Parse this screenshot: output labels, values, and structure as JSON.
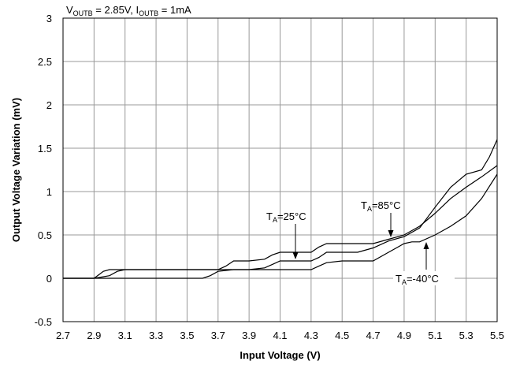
{
  "chart_data": {
    "type": "line",
    "title": "",
    "conditions": {
      "v_base": "V",
      "v_sub": "OUTB",
      "v_value": " = 2.85V, ",
      "i_base": "I",
      "i_sub": "OUTB",
      "i_value": " = 1mA"
    },
    "xlabel": "Input Voltage (V)",
    "ylabel": "Output Voltage Variation (mV)",
    "xlim": [
      2.7,
      5.5
    ],
    "ylim": [
      -0.5,
      3
    ],
    "xticks": [
      "2.7",
      "2.9",
      "3.1",
      "3.3",
      "3.5",
      "3.7",
      "3.9",
      "4.1",
      "4.3",
      "4.5",
      "4.7",
      "4.9",
      "5.1",
      "5.3",
      "5.5"
    ],
    "yticks": [
      "-0.5",
      "0",
      "0.5",
      "1",
      "1.5",
      "2",
      "2.5",
      "3"
    ],
    "grid": true,
    "series": [
      {
        "name": "25°C",
        "x": [
          2.7,
          2.9,
          2.93,
          2.96,
          3.0,
          3.04,
          3.1,
          3.3,
          3.5,
          3.6,
          3.7,
          3.75,
          3.8,
          3.9,
          4.0,
          4.05,
          4.1,
          4.15,
          4.2,
          4.3,
          4.35,
          4.4,
          4.5,
          4.6,
          4.7,
          4.8,
          4.9,
          5.0,
          5.1,
          5.2,
          5.3,
          5.4,
          5.5
        ],
        "y": [
          0,
          0,
          0.04,
          0.08,
          0.1,
          0.1,
          0.1,
          0.1,
          0.1,
          0.1,
          0.1,
          0.14,
          0.2,
          0.2,
          0.22,
          0.27,
          0.3,
          0.3,
          0.3,
          0.3,
          0.36,
          0.4,
          0.4,
          0.4,
          0.4,
          0.45,
          0.5,
          0.6,
          0.75,
          0.92,
          1.05,
          1.17,
          1.3
        ]
      },
      {
        "name": "85°C",
        "x": [
          2.7,
          2.9,
          3.0,
          3.05,
          3.1,
          3.3,
          3.5,
          3.7,
          3.8,
          3.9,
          4.0,
          4.05,
          4.1,
          4.2,
          4.3,
          4.35,
          4.4,
          4.5,
          4.6,
          4.7,
          4.8,
          4.9,
          5.0,
          5.1,
          5.2,
          5.3,
          5.4,
          5.45,
          5.5
        ],
        "y": [
          0,
          0,
          0.03,
          0.08,
          0.1,
          0.1,
          0.1,
          0.1,
          0.1,
          0.1,
          0.12,
          0.16,
          0.2,
          0.2,
          0.2,
          0.24,
          0.3,
          0.3,
          0.3,
          0.35,
          0.43,
          0.48,
          0.58,
          0.82,
          1.05,
          1.2,
          1.25,
          1.4,
          1.6
        ]
      },
      {
        "name": "-40°C",
        "x": [
          2.7,
          2.9,
          2.95,
          3.0,
          3.5,
          3.6,
          3.65,
          3.7,
          3.8,
          3.9,
          4.0,
          4.1,
          4.2,
          4.3,
          4.35,
          4.4,
          4.5,
          4.6,
          4.7,
          4.8,
          4.9,
          4.95,
          5.0,
          5.1,
          5.2,
          5.3,
          5.4,
          5.5
        ],
        "y": [
          0,
          0,
          0,
          0,
          0,
          0,
          0.03,
          0.08,
          0.1,
          0.1,
          0.1,
          0.1,
          0.1,
          0.1,
          0.14,
          0.18,
          0.2,
          0.2,
          0.2,
          0.3,
          0.4,
          0.42,
          0.42,
          0.5,
          0.6,
          0.72,
          0.92,
          1.2
        ]
      }
    ],
    "annotations": [
      {
        "base": "T",
        "sub": "A",
        "value": "=25°C"
      },
      {
        "base": "T",
        "sub": "A",
        "value": "=85°C"
      },
      {
        "base": "T",
        "sub": "A",
        "value": "=-40°C"
      }
    ]
  }
}
